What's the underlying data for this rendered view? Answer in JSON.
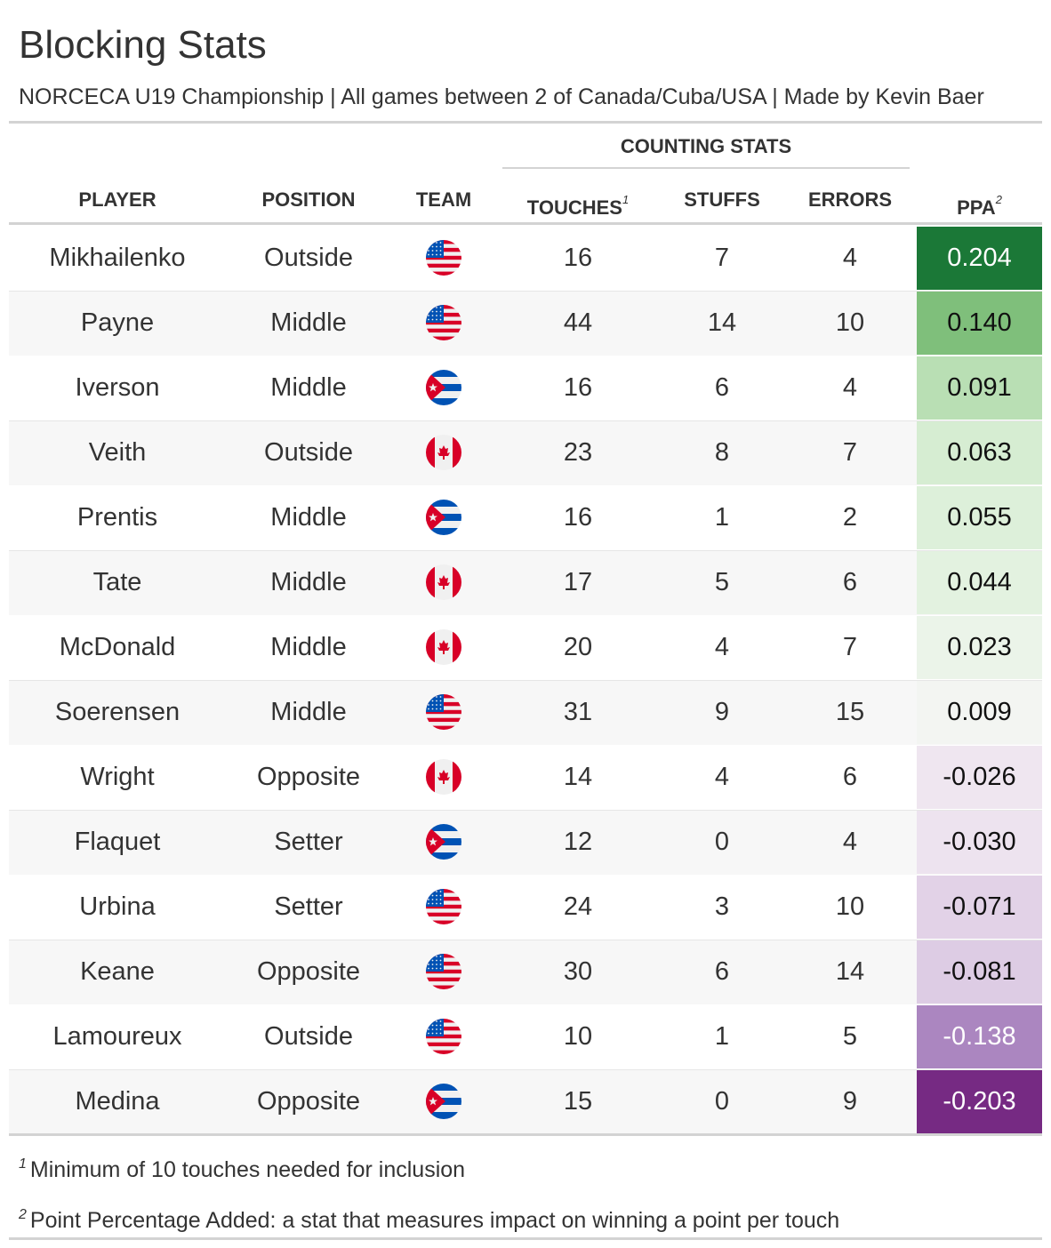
{
  "header": {
    "title": "Blocking Stats",
    "subtitle": "NORCECA U19 Championship | All games between 2 of Canada/Cuba/USA | Made by Kevin Baer"
  },
  "spanner": "COUNTING STATS",
  "columns": {
    "player": "PLAYER",
    "position": "POSITION",
    "team": "TEAM",
    "touches": "TOUCHES",
    "touches_note": "1",
    "stuffs": "STUFFS",
    "errors": "ERRORS",
    "ppa": "PPA",
    "ppa_note": "2"
  },
  "rows": [
    {
      "player": "Mikhailenko",
      "position": "Outside",
      "team": "usa-flag-icon",
      "touches": "16",
      "stuffs": "7",
      "errors": "4",
      "ppa": "0.204",
      "ppa_bg": "#1b7837",
      "ppa_fg": "#ffffff"
    },
    {
      "player": "Payne",
      "position": "Middle",
      "team": "usa-flag-icon",
      "touches": "44",
      "stuffs": "14",
      "errors": "10",
      "ppa": "0.140",
      "ppa_bg": "#7fbf7b",
      "ppa_fg": "#111111"
    },
    {
      "player": "Iverson",
      "position": "Middle",
      "team": "cuba-flag-icon",
      "touches": "16",
      "stuffs": "6",
      "errors": "4",
      "ppa": "0.091",
      "ppa_bg": "#b9dfb4",
      "ppa_fg": "#111111"
    },
    {
      "player": "Veith",
      "position": "Outside",
      "team": "canada-flag-icon",
      "touches": "23",
      "stuffs": "8",
      "errors": "7",
      "ppa": "0.063",
      "ppa_bg": "#d6edd2",
      "ppa_fg": "#111111"
    },
    {
      "player": "Prentis",
      "position": "Middle",
      "team": "cuba-flag-icon",
      "touches": "16",
      "stuffs": "1",
      "errors": "2",
      "ppa": "0.055",
      "ppa_bg": "#ddf0da",
      "ppa_fg": "#111111"
    },
    {
      "player": "Tate",
      "position": "Middle",
      "team": "canada-flag-icon",
      "touches": "17",
      "stuffs": "5",
      "errors": "6",
      "ppa": "0.044",
      "ppa_bg": "#e3f2e0",
      "ppa_fg": "#111111"
    },
    {
      "player": "McDonald",
      "position": "Middle",
      "team": "canada-flag-icon",
      "touches": "20",
      "stuffs": "4",
      "errors": "7",
      "ppa": "0.023",
      "ppa_bg": "#ebf4e9",
      "ppa_fg": "#111111"
    },
    {
      "player": "Soerensen",
      "position": "Middle",
      "team": "usa-flag-icon",
      "touches": "31",
      "stuffs": "9",
      "errors": "15",
      "ppa": "0.009",
      "ppa_bg": "#f3f5f2",
      "ppa_fg": "#111111"
    },
    {
      "player": "Wright",
      "position": "Opposite",
      "team": "canada-flag-icon",
      "touches": "14",
      "stuffs": "4",
      "errors": "6",
      "ppa": "-0.026",
      "ppa_bg": "#efe6f0",
      "ppa_fg": "#111111"
    },
    {
      "player": "Flaquet",
      "position": "Setter",
      "team": "cuba-flag-icon",
      "touches": "12",
      "stuffs": "0",
      "errors": "4",
      "ppa": "-0.030",
      "ppa_bg": "#ede3ef",
      "ppa_fg": "#111111"
    },
    {
      "player": "Urbina",
      "position": "Setter",
      "team": "usa-flag-icon",
      "touches": "24",
      "stuffs": "3",
      "errors": "10",
      "ppa": "-0.071",
      "ppa_bg": "#e2d2e7",
      "ppa_fg": "#111111"
    },
    {
      "player": "Keane",
      "position": "Opposite",
      "team": "usa-flag-icon",
      "touches": "30",
      "stuffs": "6",
      "errors": "14",
      "ppa": "-0.081",
      "ppa_bg": "#ddcce4",
      "ppa_fg": "#111111"
    },
    {
      "player": "Lamoureux",
      "position": "Outside",
      "team": "usa-flag-icon",
      "touches": "10",
      "stuffs": "1",
      "errors": "5",
      "ppa": "-0.138",
      "ppa_bg": "#ab86c0",
      "ppa_fg": "#ffffff"
    },
    {
      "player": "Medina",
      "position": "Opposite",
      "team": "cuba-flag-icon",
      "touches": "15",
      "stuffs": "0",
      "errors": "9",
      "ppa": "-0.203",
      "ppa_bg": "#762a83",
      "ppa_fg": "#ffffff"
    }
  ],
  "footnotes": [
    {
      "mark": "1",
      "text": "Minimum of 10 touches needed for inclusion"
    },
    {
      "mark": "2",
      "text": "Point Percentage Added: a stat that measures impact on winning a point per touch"
    }
  ]
}
